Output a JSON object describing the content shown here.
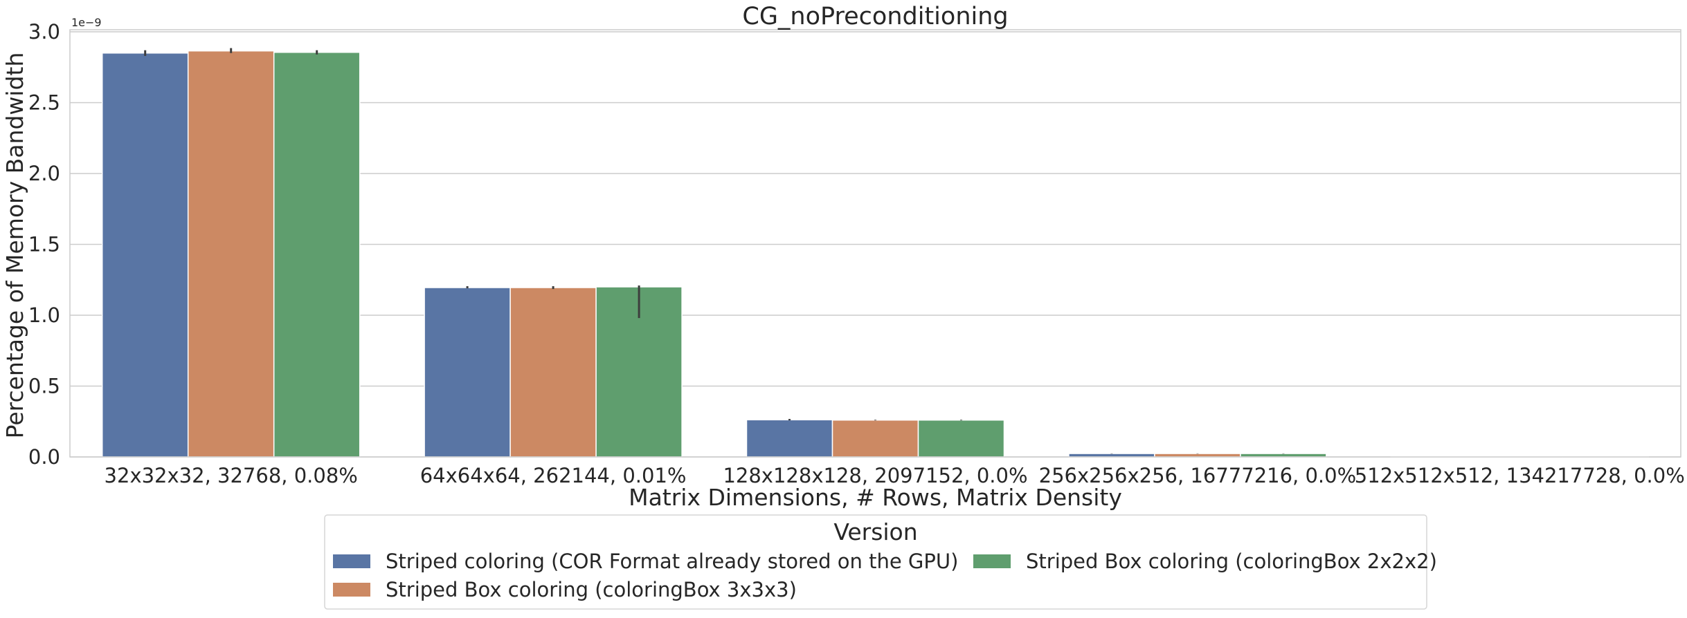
{
  "chart_data": {
    "type": "bar",
    "title": "CG_noPreconditioning",
    "xlabel": "Matrix Dimensions, # Rows, Matrix Density",
    "ylabel": "Percentage of Memory Bandwidth",
    "y_offset_label": "1e−9",
    "ylim": [
      0,
      3.0
    ],
    "yticks": [
      0.0,
      0.5,
      1.0,
      1.5,
      2.0,
      2.5,
      3.0
    ],
    "ytick_labels": [
      "0.0",
      "0.5",
      "1.0",
      "1.5",
      "2.0",
      "2.5",
      "3.0"
    ],
    "grid": true,
    "legend_placement": "bottom-center",
    "legend_title": "Version",
    "categories": [
      "32x32x32, 32768, 0.08%",
      "64x64x64, 262144, 0.01%",
      "128x128x128, 2097152, 0.0%",
      "256x256x256, 16777216, 0.0%",
      "512x512x512, 134217728, 0.0%"
    ],
    "series": [
      {
        "name": "Striped coloring (COR Format already stored on the GPU)",
        "color": "#5975a4",
        "values": [
          2.85,
          1.195,
          0.262,
          0.024,
          0.003
        ],
        "error_low": [
          2.83,
          1.19,
          0.258,
          0.023,
          0.003
        ],
        "error_high": [
          2.87,
          1.205,
          0.268,
          0.025,
          0.003
        ]
      },
      {
        "name": "Striped Box coloring (coloringBox 3x3x3)",
        "color": "#cc8963",
        "values": [
          2.865,
          1.195,
          0.26,
          0.024,
          0.003
        ],
        "error_low": [
          2.85,
          1.185,
          0.258,
          0.023,
          0.003
        ],
        "error_high": [
          2.885,
          1.205,
          0.262,
          0.025,
          0.003
        ]
      },
      {
        "name": "Striped Box coloring (coloringBox 2x2x2)",
        "color": "#5f9e6e",
        "values": [
          2.855,
          1.2,
          0.26,
          0.024,
          0.003
        ],
        "error_low": [
          2.84,
          0.98,
          0.258,
          0.023,
          0.003
        ],
        "error_high": [
          2.87,
          1.21,
          0.262,
          0.025,
          0.003
        ]
      }
    ]
  }
}
